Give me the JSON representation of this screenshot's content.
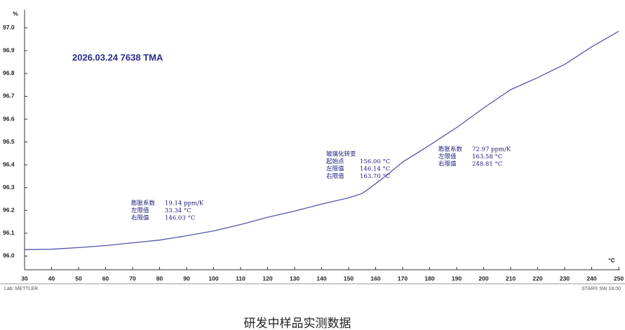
{
  "chart_data": {
    "type": "line",
    "title": "2026.03.24 7638 TMA",
    "y_label": "%",
    "x_label": "°C",
    "footer_left": "Lab: METTLER",
    "footer_right": "STAR® SW 18.00",
    "caption": "研发中样品实测数据",
    "x": [
      30,
      40,
      50,
      60,
      70,
      80,
      90,
      100,
      110,
      120,
      130,
      140,
      150,
      155,
      160,
      165,
      170,
      180,
      190,
      200,
      210,
      220,
      230,
      240,
      250
    ],
    "series": [
      {
        "name": "TMA",
        "color": "#5555aa",
        "values": [
          96.028,
          96.03,
          96.037,
          96.046,
          96.058,
          96.07,
          96.089,
          96.11,
          96.138,
          96.17,
          96.197,
          96.228,
          96.255,
          96.274,
          96.317,
          96.363,
          96.412,
          96.486,
          96.563,
          96.649,
          96.729,
          96.782,
          96.84,
          96.917,
          96.985
        ]
      }
    ],
    "xlim": [
      30,
      250
    ],
    "xticks": [
      30,
      40,
      50,
      60,
      70,
      80,
      90,
      100,
      110,
      120,
      130,
      140,
      150,
      160,
      170,
      180,
      190,
      200,
      210,
      220,
      230,
      240,
      250
    ],
    "ylim": [
      95.94,
      97.03
    ],
    "yticks": [
      {
        "value": 96.0,
        "label": "96.0"
      },
      96.1,
      96.2,
      96.3,
      96.4,
      96.5,
      96.6,
      96.7,
      96.8,
      96.9,
      {
        "value": 97.0,
        "label": "97.0"
      }
    ],
    "annotations": [
      {
        "lines": [
          [
            "膨胀系数",
            "19.14 ppm/K"
          ],
          [
            "左限值",
            "33.34 °C"
          ],
          [
            "右限值",
            "146.03 °C"
          ]
        ]
      },
      {
        "title": "玻璃化转变",
        "lines": [
          [
            "起始点",
            "156.00 °C"
          ],
          [
            "左限值",
            "146.14 °C"
          ],
          [
            "右限值",
            "163.70 °C"
          ]
        ]
      },
      {
        "lines": [
          [
            "膨胀系数",
            "72.97 ppm/K"
          ],
          [
            "左限值",
            "163.58 °C"
          ],
          [
            "右限值",
            "248.81 °C"
          ]
        ]
      }
    ]
  }
}
